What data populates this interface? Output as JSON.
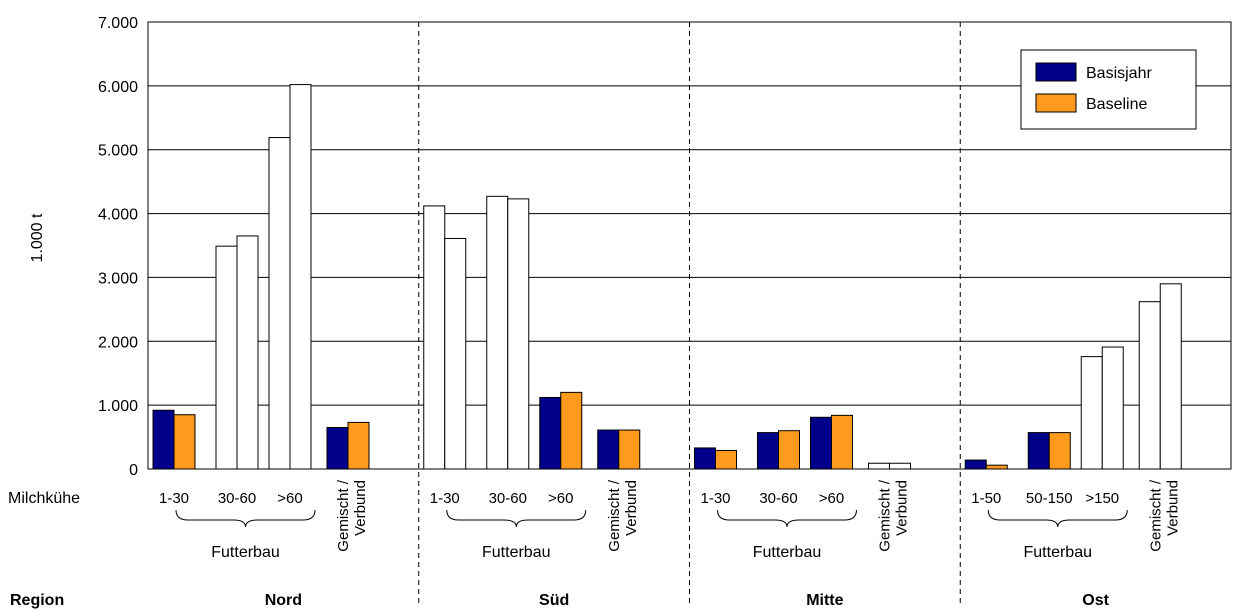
{
  "chart_data": {
    "type": "bar",
    "ylabel": "1.000 t",
    "ylim": [
      0,
      7000
    ],
    "yticks": [
      "0",
      "1.000",
      "2.000",
      "3.000",
      "4.000",
      "5.000",
      "6.000",
      "7.000"
    ],
    "grid": true,
    "legend_position": "top-right",
    "row_labels": {
      "cows": "Milchkühe",
      "region": "Region"
    },
    "group_label": "Futterbau",
    "series": [
      {
        "name": "Basisjahr",
        "color": "#00008b"
      },
      {
        "name": "Baseline",
        "color": "#ff9a1c"
      }
    ],
    "regions": [
      {
        "name": "Nord",
        "categories": [
          {
            "label": "1-30",
            "values": [
              920,
              850
            ],
            "filled": true
          },
          {
            "label": "30-60",
            "values": [
              3490,
              3650
            ],
            "filled": false
          },
          {
            "label": ">60",
            "values": [
              5190,
              6020
            ],
            "filled": false
          },
          {
            "label": "Gemischt / Verbund",
            "values": [
              650,
              730
            ],
            "filled": true,
            "mixed": true
          }
        ]
      },
      {
        "name": "Süd",
        "categories": [
          {
            "label": "1-30",
            "values": [
              4120,
              3610
            ],
            "filled": false
          },
          {
            "label": "30-60",
            "values": [
              4270,
              4230
            ],
            "filled": false
          },
          {
            "label": ">60",
            "values": [
              1120,
              1200
            ],
            "filled": true
          },
          {
            "label": "Gemischt / Verbund",
            "values": [
              610,
              610
            ],
            "filled": true,
            "mixed": true
          }
        ]
      },
      {
        "name": "Mitte",
        "categories": [
          {
            "label": "1-30",
            "values": [
              330,
              290
            ],
            "filled": true
          },
          {
            "label": "30-60",
            "values": [
              570,
              600
            ],
            "filled": true
          },
          {
            "label": ">60",
            "values": [
              810,
              840
            ],
            "filled": true
          },
          {
            "label": "Gemischt / Verbund",
            "values": [
              90,
              90
            ],
            "filled": false,
            "mixed": true
          }
        ]
      },
      {
        "name": "Ost",
        "categories": [
          {
            "label": "1-50",
            "values": [
              140,
              60
            ],
            "filled": true
          },
          {
            "label": "50-150",
            "values": [
              570,
              570
            ],
            "filled": true
          },
          {
            "label": ">150",
            "values": [
              1760,
              1910
            ],
            "filled": false
          },
          {
            "label": "Gemischt / Verbund",
            "values": [
              2620,
              2900
            ],
            "filled": false,
            "mixed": true
          }
        ]
      }
    ]
  }
}
